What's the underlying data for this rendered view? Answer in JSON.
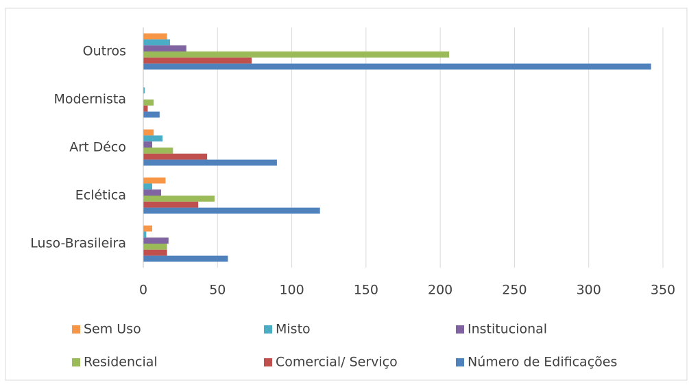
{
  "chart_data": {
    "type": "bar",
    "orientation": "horizontal",
    "categories": [
      "Outros",
      "Modernista",
      "Art Déco",
      "Eclética",
      "Luso-Brasileira"
    ],
    "series": [
      {
        "name": "Sem Uso",
        "color": "#f79646",
        "values": [
          16,
          0,
          7,
          15,
          6
        ]
      },
      {
        "name": "Misto",
        "color": "#4bacc6",
        "values": [
          18,
          1,
          13,
          6,
          2
        ]
      },
      {
        "name": "Institucional",
        "color": "#8064a2",
        "values": [
          29,
          0,
          6,
          12,
          17
        ]
      },
      {
        "name": "Residencial",
        "color": "#9bbb59",
        "values": [
          206,
          7,
          20,
          48,
          16
        ]
      },
      {
        "name": "Comercial/ Serviço",
        "color": "#c0504d",
        "values": [
          73,
          3,
          43,
          37,
          16
        ]
      },
      {
        "name": "Número de Edificações",
        "color": "#4f81bd",
        "values": [
          342,
          11,
          90,
          119,
          57
        ]
      }
    ],
    "xlim": [
      0,
      350
    ],
    "xticks": [
      0,
      50,
      100,
      150,
      200,
      250,
      300,
      350
    ],
    "grid": true,
    "legend": "bottom"
  }
}
